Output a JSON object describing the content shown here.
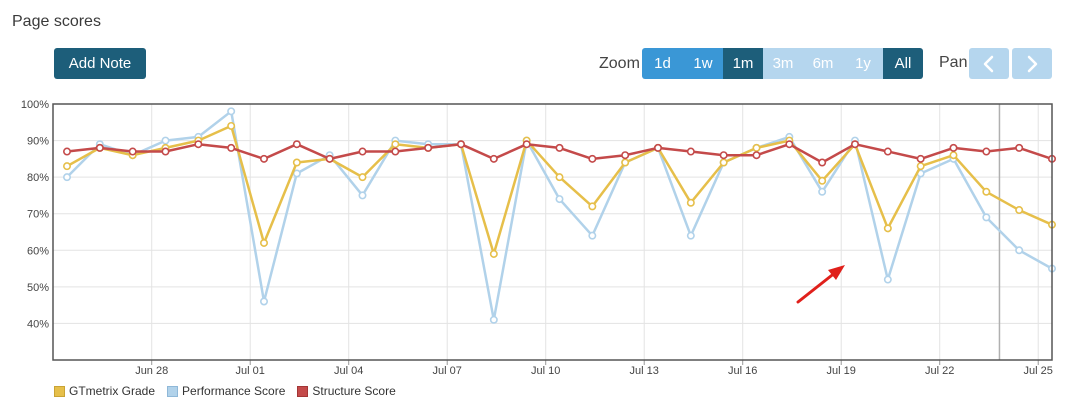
{
  "page": {
    "title": "Page scores"
  },
  "toolbar": {
    "add_note_label": "Add Note",
    "zoom_label": "Zoom",
    "pan_label": "Pan",
    "zoom_options": [
      {
        "label": "1d",
        "state": "enabled"
      },
      {
        "label": "1w",
        "state": "enabled"
      },
      {
        "label": "1m",
        "state": "selected"
      },
      {
        "label": "3m",
        "state": "disabled"
      },
      {
        "label": "6m",
        "state": "disabled"
      },
      {
        "label": "1y",
        "state": "disabled"
      },
      {
        "label": "All",
        "state": "selected"
      }
    ],
    "pan_prev_icon": "chevron-left-icon",
    "pan_next_icon": "chevron-right-icon"
  },
  "colors": {
    "zoom_enabled": "#3a97d6",
    "zoom_selected": "#1d5e7a",
    "zoom_disabled": "#b5d6ee",
    "pan_button": "#b5d6ee",
    "gtmetrix": "#e6bf4a",
    "performance": "#b1d2ea",
    "structure": "#c44a4a"
  },
  "chart_data": {
    "type": "line",
    "y_ticks": [
      "40%",
      "50%",
      "60%",
      "70%",
      "80%",
      "90%",
      "100%"
    ],
    "ylim": [
      30,
      100
    ],
    "xlim": [
      0,
      30
    ],
    "x_ticks": [
      {
        "label": "Jun 28",
        "x": 2.58
      },
      {
        "label": "Jul 01",
        "x": 5.58
      },
      {
        "label": "Jul 04",
        "x": 8.58
      },
      {
        "label": "Jul 07",
        "x": 11.58
      },
      {
        "label": "Jul 10",
        "x": 14.58
      },
      {
        "label": "Jul 13",
        "x": 17.58
      },
      {
        "label": "Jul 16",
        "x": 20.58
      },
      {
        "label": "Jul 19",
        "x": 23.58
      },
      {
        "label": "Jul 22",
        "x": 26.58
      },
      {
        "label": "Jul 25",
        "x": 29.58
      }
    ],
    "x_marker": 28.4,
    "grid": true,
    "legend_position": "bottom-left",
    "series": [
      {
        "name": "GTmetrix Grade",
        "values": [
          83,
          88,
          86,
          88,
          90,
          94,
          62,
          84,
          85,
          80,
          89,
          88,
          89,
          59,
          90,
          80,
          72,
          84,
          88,
          73,
          84,
          88,
          90,
          79,
          89,
          66,
          83,
          86,
          76,
          71,
          67
        ]
      },
      {
        "name": "Performance Score",
        "values": [
          80,
          89,
          86,
          90,
          91,
          98,
          46,
          81,
          86,
          75,
          90,
          89,
          89,
          41,
          90,
          74,
          64,
          84,
          88,
          64,
          84,
          88,
          91,
          76,
          90,
          52,
          81,
          85,
          69,
          60,
          55
        ]
      },
      {
        "name": "Structure Score",
        "values": [
          87,
          88,
          87,
          87,
          89,
          88,
          85,
          89,
          85,
          87,
          87,
          88,
          89,
          85,
          89,
          88,
          85,
          86,
          88,
          87,
          86,
          86,
          89,
          84,
          89,
          87,
          85,
          88,
          87,
          88,
          85
        ]
      }
    ]
  }
}
